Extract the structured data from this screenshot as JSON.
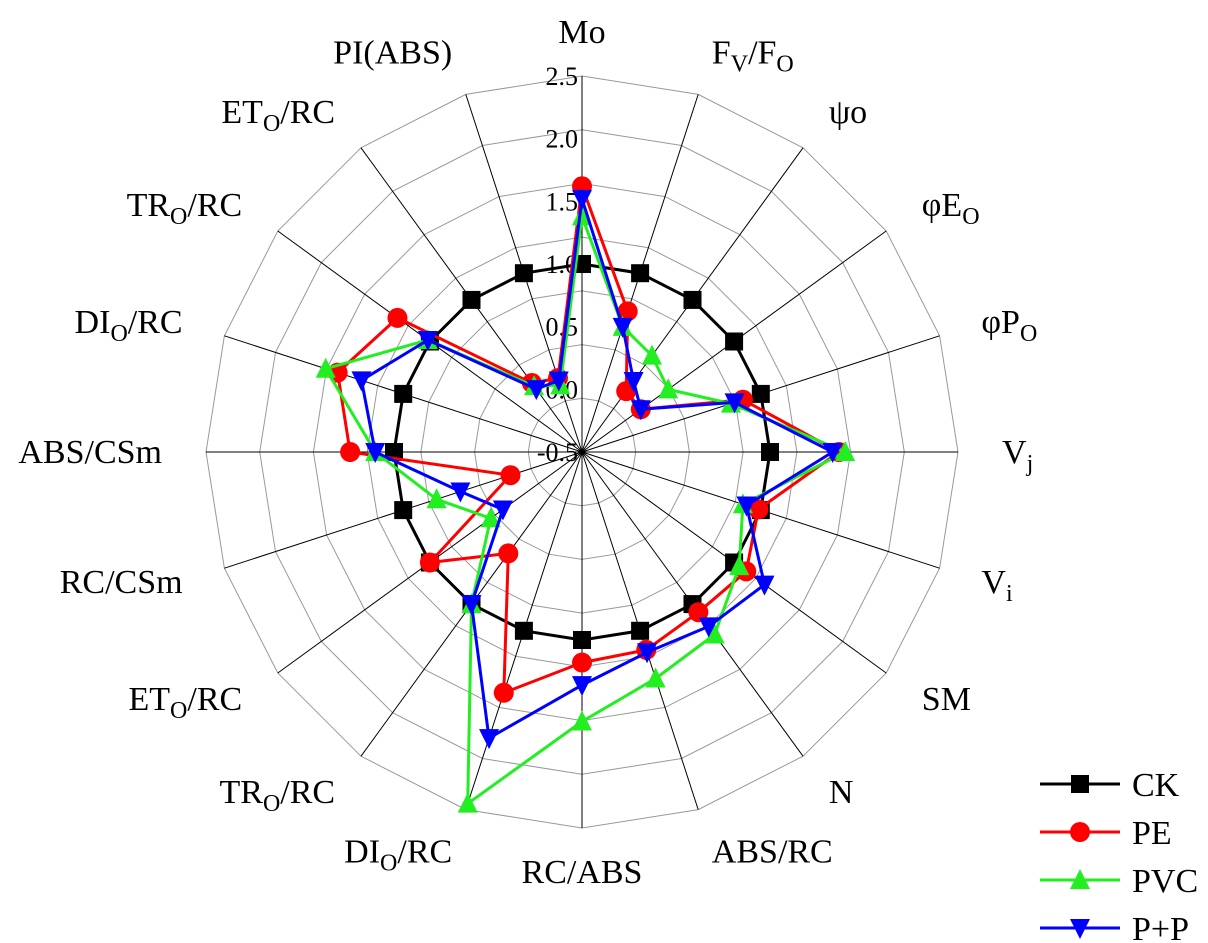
{
  "chart_data": {
    "type": "radar",
    "title": "",
    "axes": [
      {
        "main": "Mo",
        "sub": ""
      },
      {
        "main": "F",
        "sub": "V",
        "main2": "/F",
        "sub2": "O"
      },
      {
        "main": "ψo",
        "sub": ""
      },
      {
        "main": "φE",
        "sub": "O"
      },
      {
        "main": "φP",
        "sub": "O"
      },
      {
        "main": "V",
        "sub": "j"
      },
      {
        "main": "V",
        "sub": "i"
      },
      {
        "main": "SM",
        "sub": ""
      },
      {
        "main": "N",
        "sub": ""
      },
      {
        "main": "ABS/RC",
        "sub": ""
      },
      {
        "main": "RC/ABS",
        "sub": ""
      },
      {
        "main": "DI",
        "sub": "O",
        "main2": "/RC"
      },
      {
        "main": "TR",
        "sub": "O",
        "main2": "/RC"
      },
      {
        "main": "ET",
        "sub": "O",
        "main2": "/RC"
      },
      {
        "main": "RC/CSm",
        "sub": ""
      },
      {
        "main": "ABS/CSm",
        "sub": ""
      },
      {
        "main": "DI",
        "sub": "O",
        "main2": "/RC"
      },
      {
        "main": "TR",
        "sub": "O",
        "main2": "/RC"
      },
      {
        "main": "ET",
        "sub": "O",
        "main2": "/RC"
      },
      {
        "main": "PI(ABS)",
        "sub": ""
      }
    ],
    "range": [
      -0.5,
      2.5
    ],
    "ticks": [
      "-0.5",
      "0.0",
      "0.5",
      "1.0",
      "1.5",
      "2.0",
      "2.5"
    ],
    "series": [
      {
        "name": "CK",
        "color": "#000000",
        "marker": "square",
        "values": [
          1.0,
          1.0,
          1.0,
          1.0,
          1.0,
          1.0,
          1.0,
          1.0,
          1.0,
          1.0,
          1.0,
          1.0,
          1.0,
          1.0,
          1.0,
          1.0,
          1.0,
          1.0,
          1.0,
          1.0
        ]
      },
      {
        "name": "PE",
        "color": "#ff0000",
        "marker": "circle",
        "values": [
          1.62,
          0.68,
          0.1,
          0.08,
          0.85,
          1.55,
          0.98,
          1.12,
          1.08,
          1.16,
          1.18,
          1.52,
          0.5,
          1.0,
          0.1,
          1.35,
          1.55,
          1.32,
          0.18,
          0.12
        ]
      },
      {
        "name": "PVC",
        "color": "#22ee22",
        "marker": "triangle-up",
        "values": [
          1.38,
          0.55,
          0.45,
          0.35,
          0.75,
          1.6,
          0.85,
          1.05,
          1.3,
          1.4,
          1.65,
          2.45,
          1.0,
          0.4,
          0.72,
          1.15,
          1.65,
          1.02,
          0.15,
          0.06
        ]
      },
      {
        "name": "P+P",
        "color": "#0000ff",
        "marker": "triangle-down",
        "values": [
          1.52,
          0.55,
          0.2,
          0.08,
          0.78,
          1.5,
          0.88,
          1.3,
          1.22,
          1.18,
          1.36,
          1.9,
          1.0,
          0.28,
          0.52,
          1.15,
          1.35,
          1.02,
          0.12,
          0.1
        ]
      }
    ],
    "grid": true,
    "legend_position": "bottom-right"
  }
}
